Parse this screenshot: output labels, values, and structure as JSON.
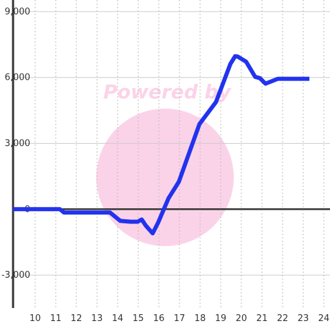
{
  "chart_data": {
    "type": "line",
    "watermark": "Powered by",
    "x": [
      8.93,
      11.2,
      11.4,
      13.63,
      14.13,
      14.63,
      14.97,
      15.17,
      15.37,
      15.7,
      15.97,
      16.47,
      16.97,
      17.97,
      18.77,
      19.47,
      19.7,
      19.83,
      20.23,
      20.67,
      20.9,
      21.17,
      21.77,
      23.3
    ],
    "series": [
      {
        "color": "#2233ee",
        "values": [
          0,
          0,
          -150,
          -150,
          -530,
          -570,
          -570,
          -470,
          -750,
          -1100,
          -600,
          500,
          1250,
          3880,
          4880,
          6620,
          6970,
          6950,
          6720,
          6030,
          5970,
          5720,
          5940,
          5940
        ]
      }
    ],
    "xlim": [
      8.93,
      24.3
    ],
    "ylim": [
      -4500,
      9530
    ],
    "xticks": [
      10,
      11,
      12,
      13,
      14,
      15,
      16,
      17,
      18,
      19,
      20,
      21,
      22,
      23,
      24
    ],
    "yticks": [
      {
        "value": -3000,
        "label": "-3,000"
      },
      0,
      {
        "value": 3000,
        "label": "3,000"
      },
      {
        "value": 6000,
        "label": "6,000"
      },
      {
        "value": 9000,
        "label": "9,000"
      }
    ],
    "grid": true
  }
}
